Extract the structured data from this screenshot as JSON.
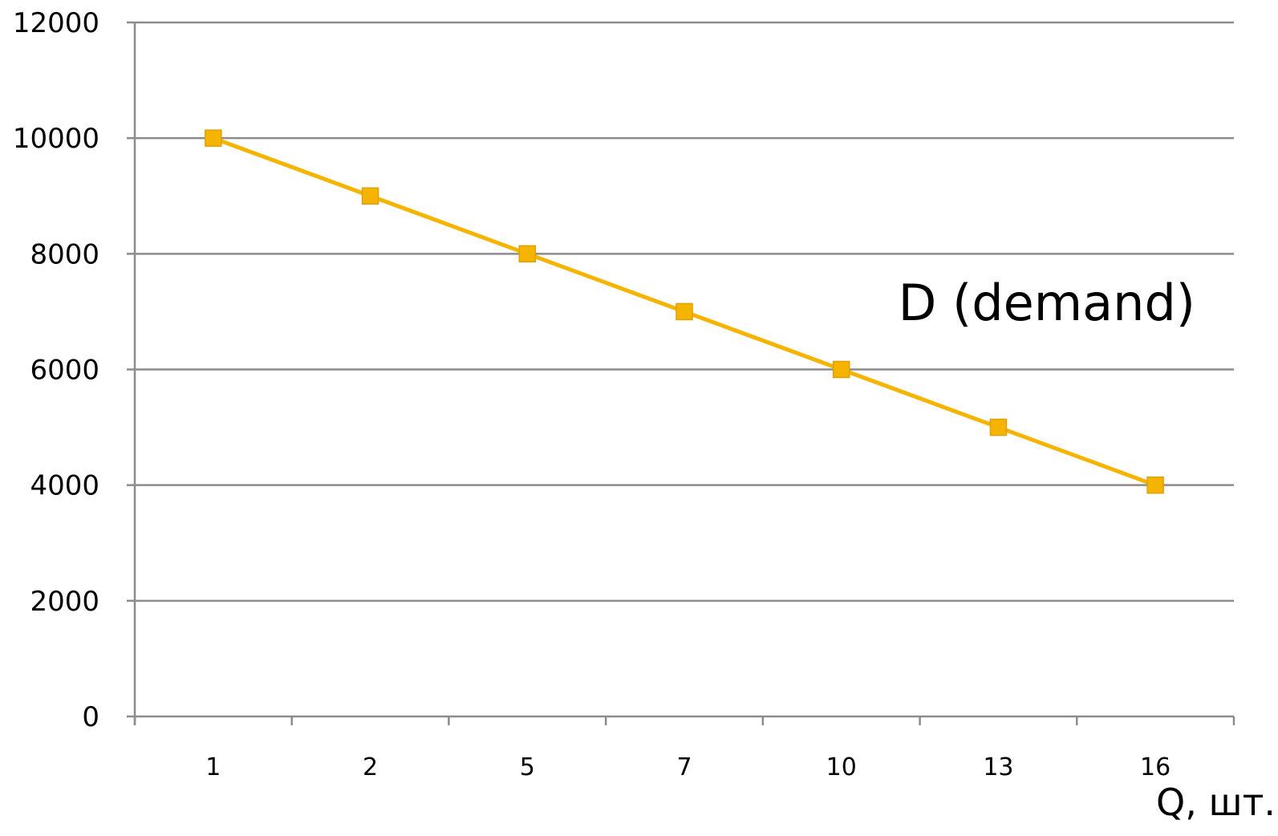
{
  "chart_data": {
    "type": "line",
    "categories": [
      "1",
      "2",
      "5",
      "7",
      "10",
      "13",
      "16"
    ],
    "series": [
      {
        "name": "D (demand)",
        "values": [
          10000,
          9000,
          8000,
          7000,
          6000,
          5000,
          4000
        ],
        "color": "#F5B400",
        "marker": "square"
      }
    ],
    "title": "",
    "xlabel": "Q, шт.",
    "ylabel": "",
    "ylim": [
      0,
      12000
    ],
    "yticks": [
      "0",
      "2000",
      "4000",
      "6000",
      "8000",
      "10000",
      "12000"
    ],
    "grid": true,
    "grid_color": "#8C8C8C",
    "axis_color": "#8C8C8C"
  }
}
